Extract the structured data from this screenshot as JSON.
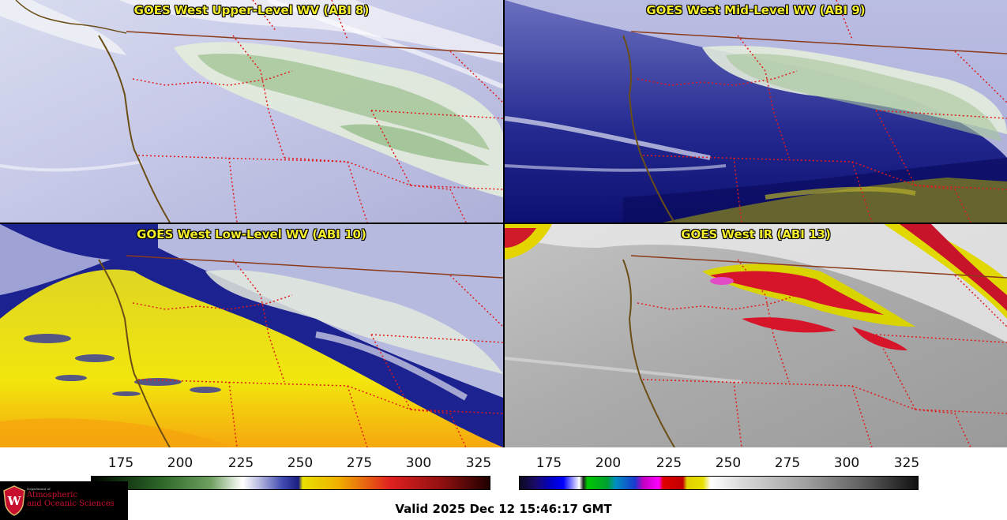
{
  "panels": [
    {
      "title": "GOES West Upper-Level WV (ABI 8)",
      "palette": "wv-upper"
    },
    {
      "title": "GOES West Mid-Level WV (ABI 9)",
      "palette": "wv-mid"
    },
    {
      "title": "GOES West Low-Level WV (ABI 10)",
      "palette": "wv-low"
    },
    {
      "title": "GOES West IR (ABI 13)",
      "palette": "ir"
    }
  ],
  "colorbars": {
    "wv": {
      "ticks": [
        "175",
        "200",
        "225",
        "250",
        "275",
        "300",
        "325"
      ]
    },
    "ir": {
      "ticks": [
        "175",
        "200",
        "225",
        "250",
        "275",
        "300",
        "325"
      ]
    }
  },
  "logo": {
    "dept_small": "Department of",
    "line1": "Atmospheric",
    "line2": "and Oceanic Sciences",
    "emblem_icon": "uw-crest-icon"
  },
  "footer": {
    "valid": "Valid 2025 Dec 12 15:46:17 GMT"
  },
  "colors": {
    "title": "#f5ee2a",
    "state_borders": "#e11a1a",
    "coastline": "#6b4e16"
  }
}
